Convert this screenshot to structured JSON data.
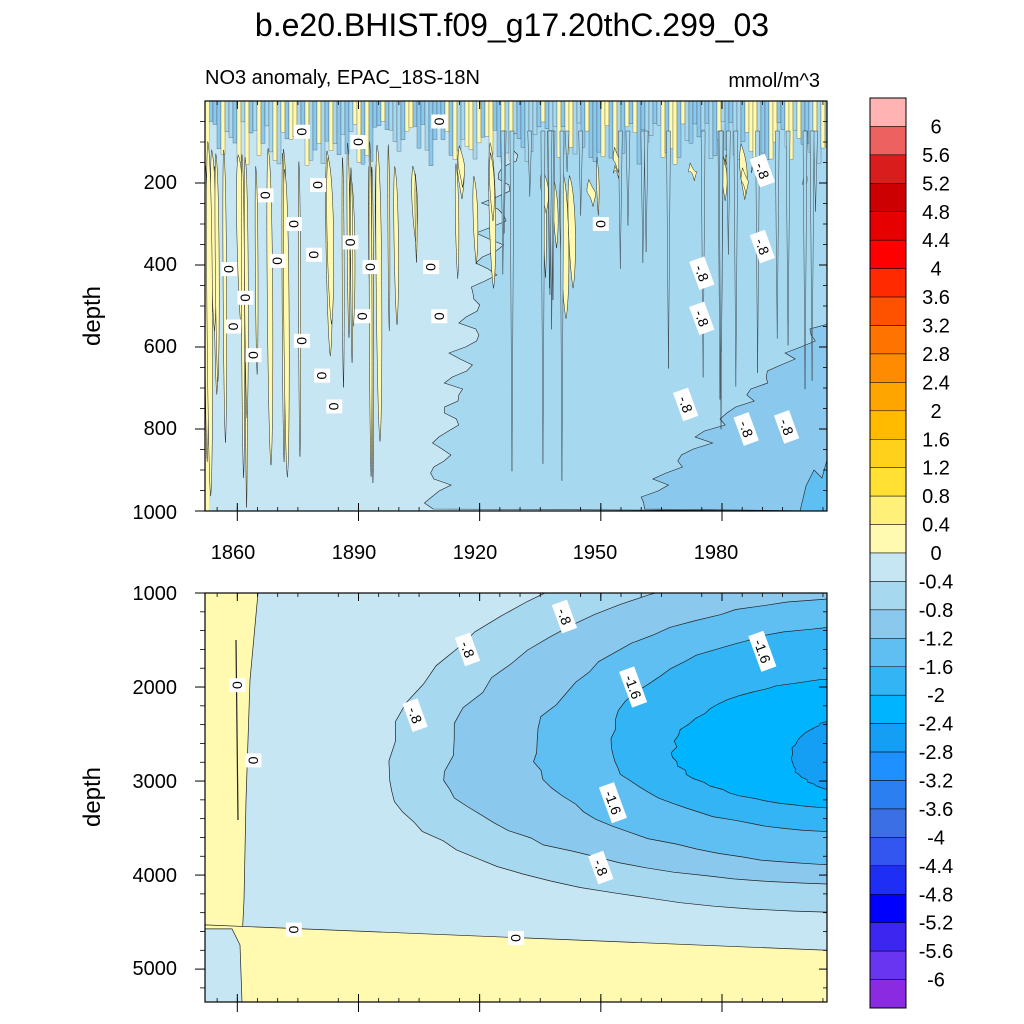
{
  "chart_data": {
    "type": "contour",
    "title": "b.e20.BHIST.f09_g17.20thC.299_03",
    "subtitle": "NO3 anomaly, EPAC_18S-18N",
    "units": "mmol/m^3",
    "x_ticks": [
      "1860",
      "1890",
      "1920",
      "1950",
      "1980"
    ],
    "xlim": [
      1852,
      2006
    ],
    "panels": [
      {
        "name": "upper",
        "ylabel": "depth",
        "ylim": [
          0,
          1000
        ],
        "y_ticks": [
          "200",
          "400",
          "600",
          "800",
          "1000"
        ],
        "contour_labels": [
          {
            "text": "0",
            "year": 1876,
            "depth": 75
          },
          {
            "text": "0",
            "year": 1910,
            "depth": 50
          },
          {
            "text": "0",
            "year": 1890,
            "depth": 100
          },
          {
            "text": "0",
            "year": 1880,
            "depth": 205
          },
          {
            "text": "0",
            "year": 1867,
            "depth": 230
          },
          {
            "text": "0",
            "year": 1874,
            "depth": 300
          },
          {
            "text": "0",
            "year": 1888,
            "depth": 345
          },
          {
            "text": "0",
            "year": 1870,
            "depth": 390
          },
          {
            "text": "0",
            "year": 1879,
            "depth": 375
          },
          {
            "text": "0",
            "year": 1858,
            "depth": 410
          },
          {
            "text": "0",
            "year": 1893,
            "depth": 405
          },
          {
            "text": "0",
            "year": 1908,
            "depth": 405
          },
          {
            "text": "0",
            "year": 1862,
            "depth": 480
          },
          {
            "text": "0",
            "year": 1859,
            "depth": 550
          },
          {
            "text": "0",
            "year": 1891,
            "depth": 525
          },
          {
            "text": "0",
            "year": 1910,
            "depth": 525
          },
          {
            "text": "0",
            "year": 1876,
            "depth": 585
          },
          {
            "text": "0",
            "year": 1864,
            "depth": 620
          },
          {
            "text": "0",
            "year": 1881,
            "depth": 670
          },
          {
            "text": "0",
            "year": 1884,
            "depth": 745
          },
          {
            "text": "0",
            "year": 1950,
            "depth": 300
          },
          {
            "text": "-.8",
            "year": 1990,
            "depth": 170
          },
          {
            "text": "-.8",
            "year": 1990,
            "depth": 355
          },
          {
            "text": "-.8",
            "year": 1975,
            "depth": 420
          },
          {
            "text": "-.8",
            "year": 1975,
            "depth": 530
          },
          {
            "text": "-.8",
            "year": 1971,
            "depth": 740
          },
          {
            "text": "-.8",
            "year": 1986,
            "depth": 800
          },
          {
            "text": "-.8",
            "year": 1996,
            "depth": 795
          }
        ]
      },
      {
        "name": "lower",
        "ylabel": "depth",
        "ylim": [
          1000,
          5350
        ],
        "y_ticks": [
          "1000",
          "2000",
          "3000",
          "4000",
          "5000"
        ],
        "contour_labels": [
          {
            "text": "0",
            "year": 1860,
            "depth": 1980
          },
          {
            "text": "0",
            "year": 1864,
            "depth": 2780
          },
          {
            "text": "0",
            "year": 1874,
            "depth": 4580
          },
          {
            "text": "0",
            "year": 1929,
            "depth": 4670
          },
          {
            "text": "-.8",
            "year": 1941,
            "depth": 1250
          },
          {
            "text": "-.8",
            "year": 1917,
            "depth": 1600
          },
          {
            "text": "-.8",
            "year": 1904,
            "depth": 2300
          },
          {
            "text": "-.8",
            "year": 1950,
            "depth": 3920
          },
          {
            "text": "-1.6",
            "year": 1958,
            "depth": 2000
          },
          {
            "text": "-1.6",
            "year": 1990,
            "depth": 1620
          },
          {
            "text": "-1.6",
            "year": 1953,
            "depth": 3230
          }
        ]
      }
    ],
    "colorbar": {
      "labels": [
        "6",
        "5.6",
        "5.2",
        "4.8",
        "4.4",
        "4",
        "3.6",
        "3.2",
        "2.8",
        "2.4",
        "2",
        "1.6",
        "1.2",
        "0.8",
        "0.4",
        "0",
        "-0.4",
        "-0.8",
        "-1.2",
        "-1.6",
        "-2",
        "-2.4",
        "-2.8",
        "-3.2",
        "-3.6",
        "-4",
        "-4.4",
        "-4.8",
        "-5.2",
        "-5.6",
        "-6"
      ],
      "colors": [
        "#ffb3b3",
        "#ee6161",
        "#d91c1c",
        "#cc0000",
        "#e60000",
        "#ff0000",
        "#ff2a00",
        "#ff5200",
        "#ff7300",
        "#ff8c00",
        "#ffa500",
        "#ffbb00",
        "#ffd11a",
        "#ffe033",
        "#fff07a",
        "#fffaaf",
        "#c7e6f4",
        "#a6d8f0",
        "#8bc8ed",
        "#5fbef2",
        "#33b5f5",
        "#00b4ff",
        "#149ff5",
        "#1e90ff",
        "#2c7ff0",
        "#3a6fe6",
        "#3355f0",
        "#1f2ef5",
        "#0000ff",
        "#3c26f0",
        "#6a35f0",
        "#8a2be2"
      ]
    },
    "fill_colors": {
      "pos04": "#fffaaf",
      "neg04": "#c7e6f4",
      "neg08": "#a6d8f0",
      "neg12": "#8bc8ed",
      "neg16": "#5fbef2",
      "neg20": "#33b5f5",
      "neg24": "#00b4ff",
      "neg28": "#149ff5",
      "contour_line": "#222222",
      "label_bg": "#ffffff"
    }
  }
}
